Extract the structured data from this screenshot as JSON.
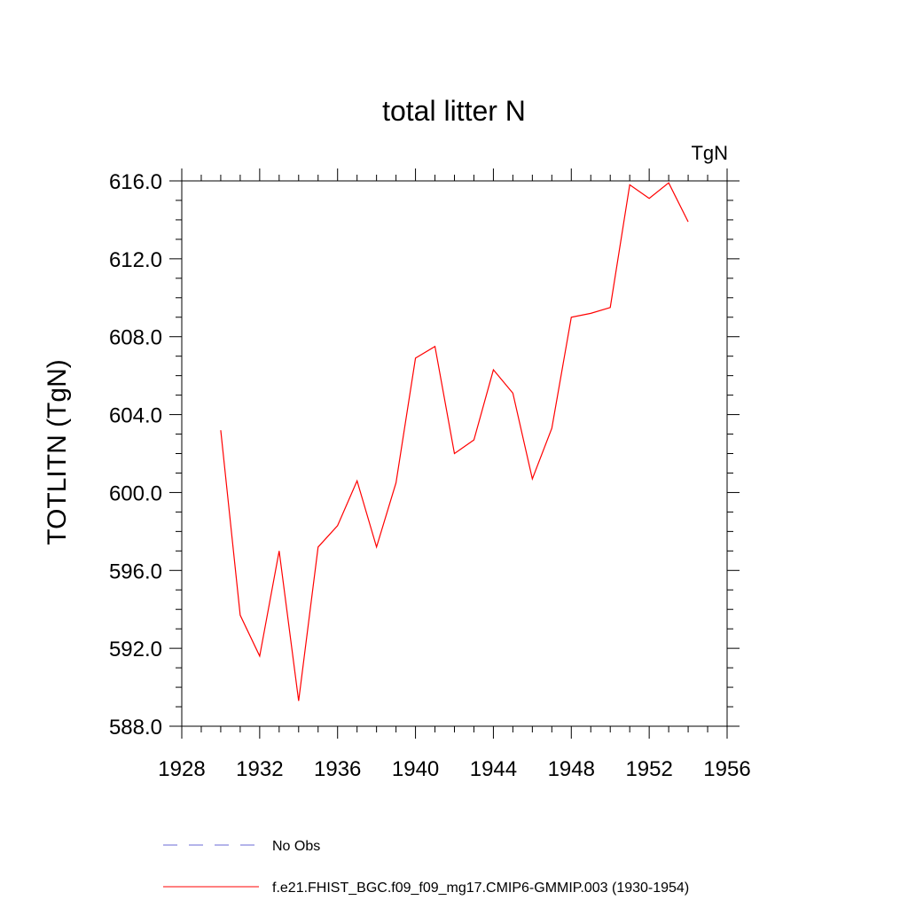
{
  "chart_data": {
    "type": "line",
    "title": "total litter N",
    "units": "TgN",
    "ylabel": "TOTLITN  (TgN)",
    "xlabel": "",
    "xlim": [
      1928,
      1956
    ],
    "ylim": [
      588.0,
      616.0
    ],
    "x_ticks": [
      "1928",
      "1932",
      "1936",
      "1940",
      "1944",
      "1948",
      "1952",
      "1956"
    ],
    "y_ticks": [
      "588.0",
      "592.0",
      "596.0",
      "600.0",
      "604.0",
      "608.0",
      "612.0",
      "616.0"
    ],
    "grid": false,
    "legend_position": "bottom",
    "series": [
      {
        "name": "No Obs",
        "color": "#6a6ad6",
        "style": "dashed",
        "x": [],
        "y": []
      },
      {
        "name": "f.e21.FHIST_BGC.f09_f09_mg17.CMIP6-GMMIP.003 (1930-1954)",
        "color": "#ff0000",
        "style": "solid",
        "x": [
          1930,
          1931,
          1932,
          1933,
          1934,
          1935,
          1936,
          1937,
          1938,
          1939,
          1940,
          1941,
          1942,
          1943,
          1944,
          1945,
          1946,
          1947,
          1948,
          1949,
          1950,
          1951,
          1952,
          1953,
          1954
        ],
        "y": [
          603.2,
          593.7,
          591.6,
          597.0,
          589.3,
          597.2,
          598.3,
          600.6,
          597.2,
          600.5,
          606.9,
          607.5,
          602.0,
          602.7,
          606.3,
          605.1,
          600.7,
          603.3,
          609.0,
          609.2,
          609.5,
          615.8,
          615.1,
          615.9,
          613.9
        ]
      }
    ]
  }
}
